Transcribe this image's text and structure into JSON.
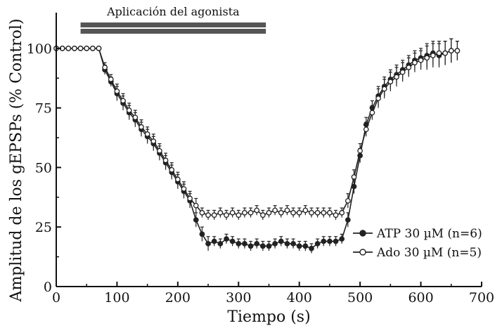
{
  "chart_data": {
    "type": "line",
    "xlabel": "Tiempo (s)",
    "ylabel": "Amplitud de los gEPSPs (% Control)",
    "xlim": [
      0,
      700
    ],
    "ylim": [
      0,
      115
    ],
    "x_ticks": [
      "0",
      "100",
      "200",
      "300",
      "400",
      "500",
      "600",
      "700"
    ],
    "y_ticks": [
      "0",
      "25",
      "50",
      "75",
      "100"
    ],
    "grid": false,
    "legend_position": "bottom-right",
    "application_bar": {
      "label": "Aplicación del agonista",
      "x_start": 40,
      "x_end": 345
    },
    "series": [
      {
        "name": "ATP 30 µM (n=6)",
        "marker": "filled-circle",
        "color": "#222222",
        "points": [
          [
            0,
            100
          ],
          [
            10,
            100
          ],
          [
            20,
            100
          ],
          [
            30,
            100
          ],
          [
            40,
            100
          ],
          [
            50,
            100
          ],
          [
            60,
            100
          ],
          [
            70,
            100
          ],
          [
            80,
            91
          ],
          [
            90,
            86
          ],
          [
            100,
            81
          ],
          [
            110,
            77
          ],
          [
            120,
            73
          ],
          [
            130,
            70
          ],
          [
            140,
            66
          ],
          [
            150,
            63
          ],
          [
            160,
            60
          ],
          [
            170,
            56
          ],
          [
            180,
            52
          ],
          [
            190,
            48
          ],
          [
            200,
            44
          ],
          [
            210,
            40
          ],
          [
            220,
            36
          ],
          [
            230,
            28
          ],
          [
            240,
            22
          ],
          [
            250,
            18
          ],
          [
            260,
            19
          ],
          [
            270,
            18
          ],
          [
            280,
            20
          ],
          [
            290,
            19
          ],
          [
            300,
            18
          ],
          [
            310,
            18
          ],
          [
            320,
            17
          ],
          [
            330,
            18
          ],
          [
            340,
            17
          ],
          [
            350,
            17
          ],
          [
            360,
            18
          ],
          [
            370,
            19
          ],
          [
            380,
            18
          ],
          [
            390,
            18
          ],
          [
            400,
            17
          ],
          [
            410,
            17
          ],
          [
            420,
            16
          ],
          [
            430,
            18
          ],
          [
            440,
            19
          ],
          [
            450,
            19
          ],
          [
            460,
            19
          ],
          [
            470,
            20
          ],
          [
            480,
            28
          ],
          [
            490,
            42
          ],
          [
            500,
            55
          ],
          [
            510,
            68
          ],
          [
            520,
            75
          ],
          [
            530,
            80
          ],
          [
            540,
            84
          ],
          [
            550,
            87
          ],
          [
            560,
            89
          ],
          [
            570,
            91
          ],
          [
            580,
            93
          ],
          [
            590,
            95
          ],
          [
            600,
            96
          ],
          [
            610,
            97
          ],
          [
            620,
            98
          ],
          [
            630,
            97
          ],
          [
            640,
            98
          ],
          [
            650,
            99
          ],
          [
            660,
            99
          ]
        ],
        "errors": [
          0,
          0,
          0,
          0,
          0,
          0,
          0,
          0,
          2,
          2,
          3,
          3,
          3,
          3,
          3,
          3,
          3,
          3,
          3,
          3,
          3,
          3,
          3,
          3,
          3,
          3,
          2,
          2,
          2,
          2,
          2,
          2,
          2,
          2,
          2,
          2,
          2,
          2,
          2,
          2,
          2,
          2,
          2,
          2,
          2,
          2,
          2,
          2,
          3,
          3,
          3,
          3,
          3,
          4,
          4,
          4,
          4,
          4,
          4,
          4,
          4,
          5,
          5,
          5,
          5,
          5,
          4
        ]
      },
      {
        "name": "Ado 30 µM (n=5)",
        "marker": "open-circle",
        "color": "#222222",
        "points": [
          [
            0,
            100
          ],
          [
            10,
            100
          ],
          [
            20,
            100
          ],
          [
            30,
            100
          ],
          [
            40,
            100
          ],
          [
            50,
            100
          ],
          [
            60,
            100
          ],
          [
            70,
            100
          ],
          [
            80,
            92
          ],
          [
            90,
            87
          ],
          [
            100,
            82
          ],
          [
            110,
            78
          ],
          [
            120,
            74
          ],
          [
            130,
            71
          ],
          [
            140,
            67
          ],
          [
            150,
            64
          ],
          [
            160,
            61
          ],
          [
            170,
            57
          ],
          [
            180,
            53
          ],
          [
            190,
            49
          ],
          [
            200,
            45
          ],
          [
            210,
            41
          ],
          [
            220,
            37
          ],
          [
            230,
            34
          ],
          [
            240,
            31
          ],
          [
            250,
            30
          ],
          [
            260,
            30
          ],
          [
            270,
            31
          ],
          [
            280,
            30
          ],
          [
            290,
            31
          ],
          [
            300,
            30
          ],
          [
            310,
            31
          ],
          [
            320,
            31
          ],
          [
            330,
            32
          ],
          [
            340,
            30
          ],
          [
            350,
            31
          ],
          [
            360,
            32
          ],
          [
            370,
            31
          ],
          [
            380,
            32
          ],
          [
            390,
            31
          ],
          [
            400,
            31
          ],
          [
            410,
            32
          ],
          [
            420,
            31
          ],
          [
            430,
            31
          ],
          [
            440,
            31
          ],
          [
            450,
            31
          ],
          [
            460,
            30
          ],
          [
            470,
            31
          ],
          [
            480,
            36
          ],
          [
            490,
            46
          ],
          [
            500,
            57
          ],
          [
            510,
            66
          ],
          [
            520,
            73
          ],
          [
            530,
            79
          ],
          [
            540,
            83
          ],
          [
            550,
            86
          ],
          [
            560,
            88
          ],
          [
            570,
            90
          ],
          [
            580,
            92
          ],
          [
            590,
            94
          ],
          [
            600,
            95
          ],
          [
            610,
            96
          ],
          [
            620,
            97
          ],
          [
            630,
            98
          ],
          [
            640,
            98
          ],
          [
            650,
            99
          ],
          [
            660,
            99
          ]
        ],
        "errors": [
          0,
          0,
          0,
          0,
          0,
          0,
          0,
          0,
          2,
          2,
          3,
          3,
          3,
          3,
          3,
          3,
          3,
          3,
          3,
          3,
          3,
          3,
          3,
          3,
          2,
          2,
          2,
          2,
          2,
          2,
          2,
          2,
          2,
          2,
          2,
          2,
          2,
          2,
          2,
          2,
          2,
          2,
          2,
          2,
          2,
          2,
          2,
          2,
          3,
          3,
          3,
          3,
          3,
          4,
          4,
          4,
          4,
          4,
          4,
          4,
          4,
          5,
          5,
          5,
          5,
          5,
          4
        ]
      }
    ]
  }
}
